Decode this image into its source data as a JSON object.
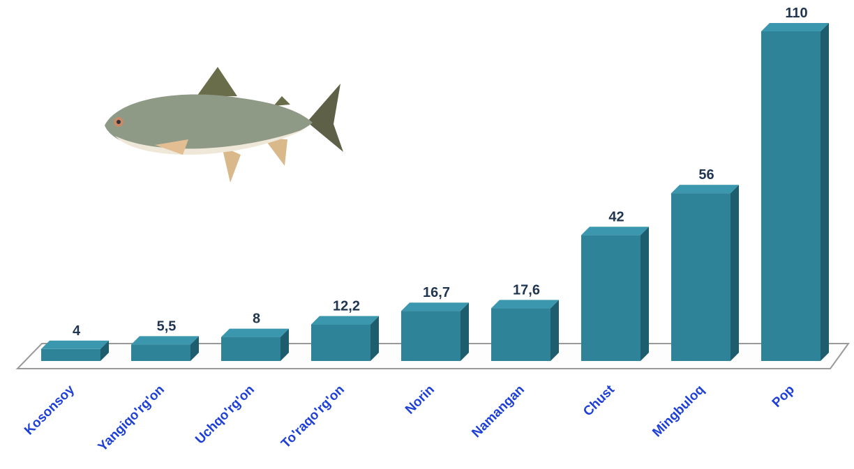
{
  "chart_data": {
    "type": "bar",
    "categories": [
      "Kosonsoy",
      "Yangiqo'rg'on",
      "Uchqo'rg'on",
      "To'raqo'rg'on",
      "Norin",
      "Namangan",
      "Chust",
      "Mingbuloq",
      "Pop"
    ],
    "values": [
      4,
      5.5,
      8,
      12.2,
      16.7,
      17.6,
      42,
      56,
      110
    ],
    "value_labels": [
      "4",
      "5,5",
      "8",
      "12,2",
      "16,7",
      "17,6",
      "42",
      "56",
      "110"
    ],
    "color": "#2e8399"
  }
}
